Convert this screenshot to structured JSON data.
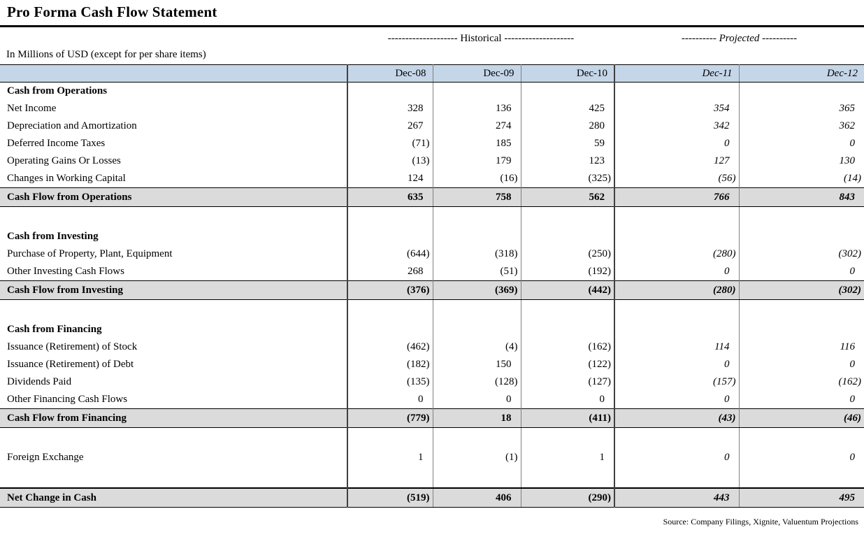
{
  "title": "Pro Forma Cash Flow Statement",
  "subtitle": "In Millions of USD (except for per share items)",
  "group_headers": {
    "historical": "-------------------- Historical --------------------",
    "projected": "---------- Projected ----------"
  },
  "columns": [
    "Dec-08",
    "Dec-09",
    "Dec-10",
    "Dec-11",
    "Dec-12"
  ],
  "projected_column_start_index": 3,
  "colors": {
    "header_bg": "#C5D6E8",
    "total_row_bg": "#DBDBDB",
    "rule": "#000000"
  },
  "table": {
    "rows": [
      {
        "type": "section",
        "label": "Cash from Operations"
      },
      {
        "type": "item",
        "label": "Net Income",
        "values": [
          "328",
          "136",
          "425",
          "354",
          "365"
        ]
      },
      {
        "type": "item",
        "label": "Depreciation and Amortization",
        "values": [
          "267",
          "274",
          "280",
          "342",
          "362"
        ]
      },
      {
        "type": "item",
        "label": "Deferred Income Taxes",
        "values": [
          "(71)",
          "185",
          "59",
          "0",
          "0"
        ]
      },
      {
        "type": "item",
        "label": "Operating Gains Or Losses",
        "values": [
          "(13)",
          "179",
          "123",
          "127",
          "130"
        ]
      },
      {
        "type": "item",
        "label": "Changes in Working Capital",
        "values": [
          "124",
          "(16)",
          "(325)",
          "(56)",
          "(14)"
        ]
      },
      {
        "type": "total",
        "label": "Cash Flow from Operations",
        "values": [
          "635",
          "758",
          "562",
          "766",
          "843"
        ]
      },
      {
        "type": "blank"
      },
      {
        "type": "section",
        "label": "Cash from Investing"
      },
      {
        "type": "item",
        "label": "Purchase of Property, Plant, Equipment",
        "values": [
          "(644)",
          "(318)",
          "(250)",
          "(280)",
          "(302)"
        ]
      },
      {
        "type": "item",
        "label": "Other Investing Cash Flows",
        "values": [
          "268",
          "(51)",
          "(192)",
          "0",
          "0"
        ]
      },
      {
        "type": "total",
        "label": "Cash Flow from Investing",
        "values": [
          "(376)",
          "(369)",
          "(442)",
          "(280)",
          "(302)"
        ]
      },
      {
        "type": "blank"
      },
      {
        "type": "section",
        "label": "Cash from Financing"
      },
      {
        "type": "item",
        "label": "Issuance (Retirement) of Stock",
        "values": [
          "(462)",
          "(4)",
          "(162)",
          "114",
          "116"
        ]
      },
      {
        "type": "item",
        "label": "Issuance (Retirement) of Debt",
        "values": [
          "(182)",
          "150",
          "(122)",
          "0",
          "0"
        ]
      },
      {
        "type": "item",
        "label": "Dividends Paid",
        "values": [
          "(135)",
          "(128)",
          "(127)",
          "(157)",
          "(162)"
        ]
      },
      {
        "type": "item",
        "label": "Other Financing Cash Flows",
        "values": [
          "0",
          "0",
          "0",
          "0",
          "0"
        ]
      },
      {
        "type": "total",
        "label": "Cash Flow from Financing",
        "values": [
          "(779)",
          "18",
          "(411)",
          "(43)",
          "(46)"
        ]
      },
      {
        "type": "blank"
      },
      {
        "type": "item",
        "label": "Foreign Exchange",
        "values": [
          "1",
          "(1)",
          "1",
          "0",
          "0"
        ]
      },
      {
        "type": "blank"
      },
      {
        "type": "grand",
        "label": "Net Change in Cash",
        "values": [
          "(519)",
          "406",
          "(290)",
          "443",
          "495"
        ]
      }
    ]
  },
  "source": "Source: Company Filings, Xignite, Valuentum Projections"
}
